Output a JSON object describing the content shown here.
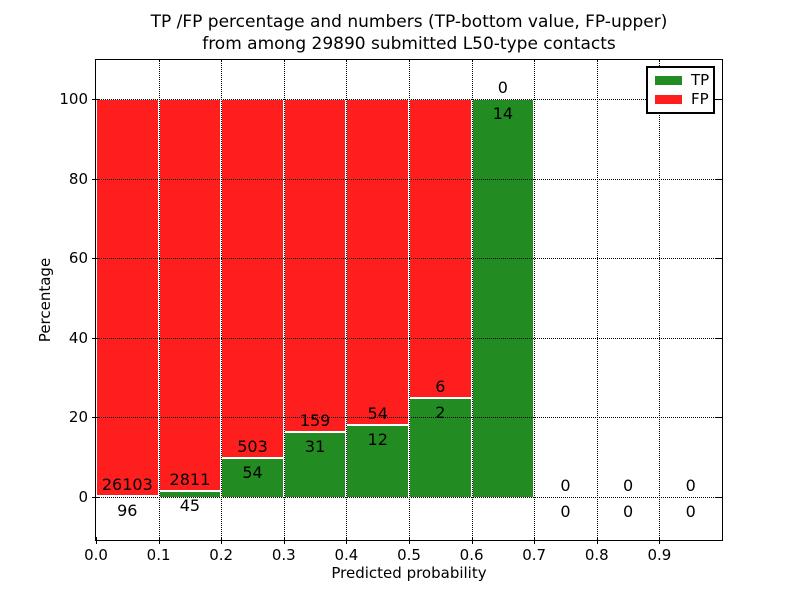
{
  "title": {
    "line1": "TP /FP percentage and numbers (TP-bottom value, FP-upper)",
    "line2": "from among 29890 submitted L50-type contacts"
  },
  "axes": {
    "xlabel": "Predicted probability",
    "ylabel": "Percentage",
    "xticks": [
      "0.0",
      "0.1",
      "0.2",
      "0.3",
      "0.4",
      "0.5",
      "0.6",
      "0.7",
      "0.8",
      "0.9"
    ],
    "yticks": [
      0,
      20,
      40,
      60,
      80,
      100
    ]
  },
  "legend": {
    "items": [
      {
        "label": "TP",
        "color": "#228b22"
      },
      {
        "label": "FP",
        "color": "#ff1e1e"
      }
    ]
  },
  "colors": {
    "tp": "#228b22",
    "fp": "#ff1e1e",
    "grid": "#000000",
    "frame": "#000000",
    "bar_edge": "#ffffff",
    "background": "#ffffff"
  },
  "chart_data": {
    "type": "bar",
    "stacked": true,
    "title": "TP /FP percentage and numbers (TP-bottom value, FP-upper) from among 29890 submitted L50-type contacts",
    "xlabel": "Predicted probability",
    "ylabel": "Percentage",
    "total_contacts": 29890,
    "xlim": [
      0.0,
      1.0
    ],
    "ylim": [
      -11,
      110
    ],
    "grid": true,
    "legend_position": "upper right",
    "bin_width": 0.1,
    "bin_starts": [
      0.0,
      0.1,
      0.2,
      0.3,
      0.4,
      0.5,
      0.6,
      0.7,
      0.8,
      0.9
    ],
    "series": [
      {
        "name": "TP",
        "counts": [
          96,
          45,
          54,
          31,
          12,
          2,
          14,
          0,
          0,
          0
        ],
        "pct": [
          0.366,
          1.576,
          9.695,
          16.316,
          18.182,
          25.0,
          100.0,
          0,
          0,
          0
        ]
      },
      {
        "name": "FP",
        "counts": [
          26103,
          2811,
          503,
          159,
          54,
          6,
          0,
          0,
          0,
          0
        ],
        "pct": [
          99.634,
          98.424,
          90.305,
          83.684,
          81.818,
          75.0,
          0,
          0,
          0,
          0
        ]
      }
    ]
  }
}
